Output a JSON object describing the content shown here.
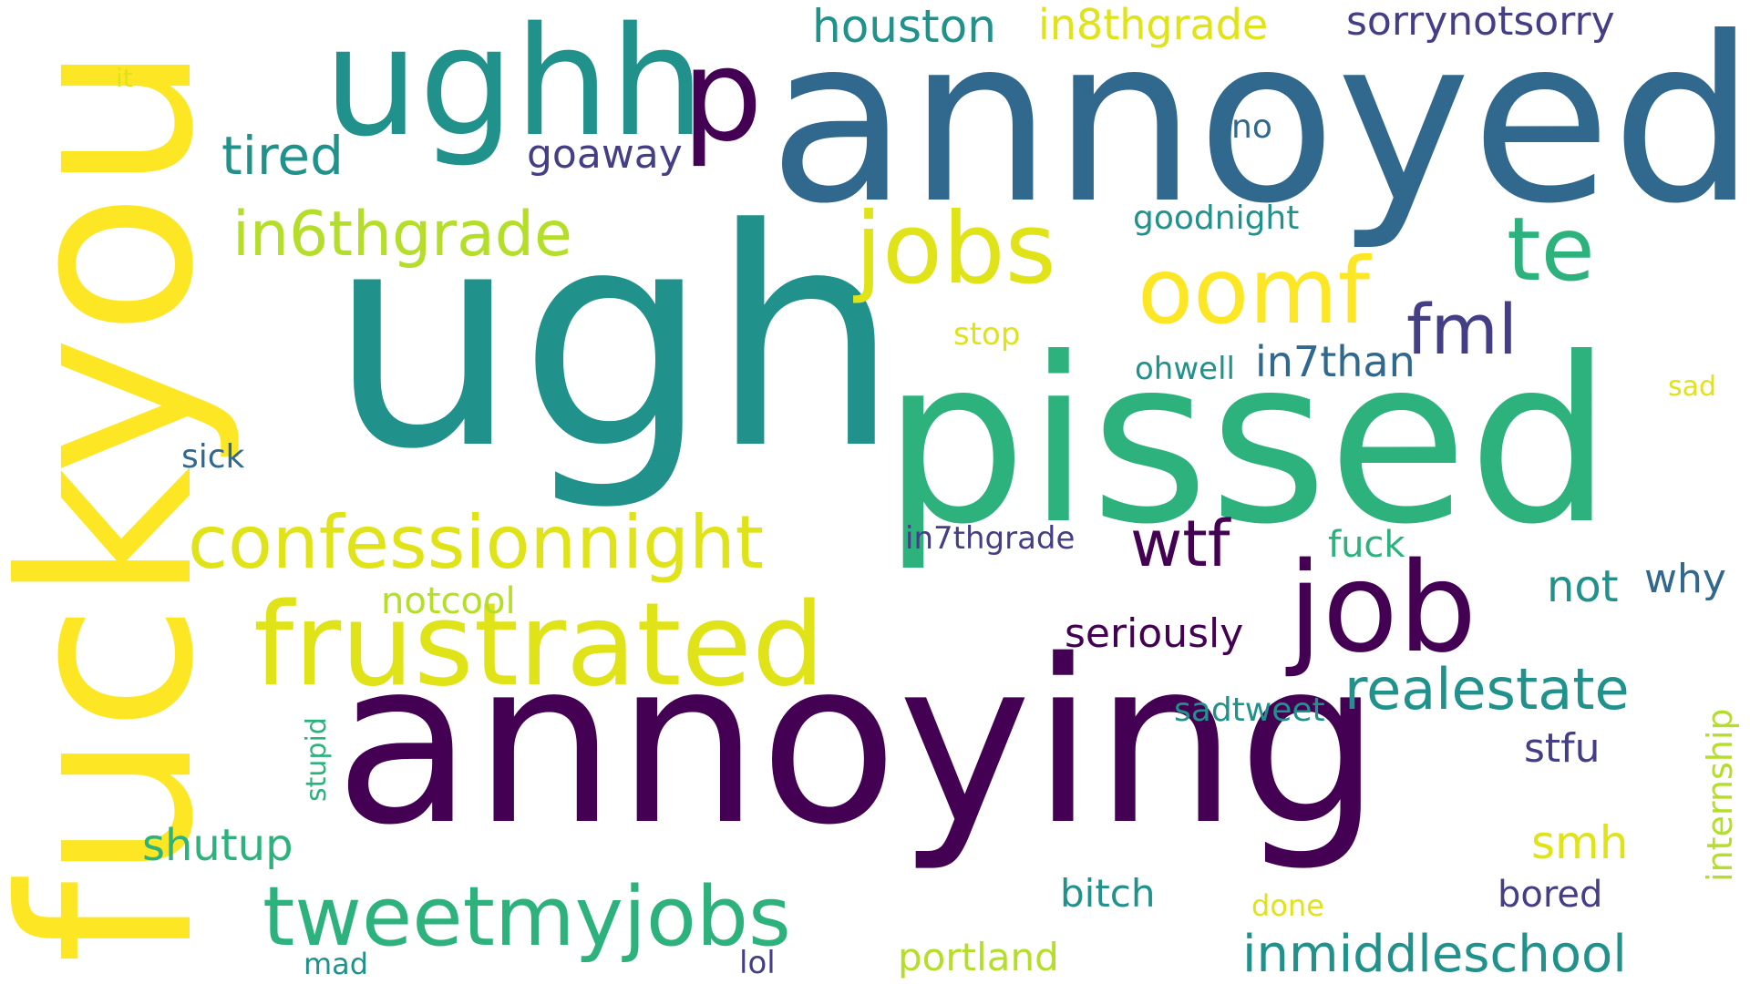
{
  "palette": {
    "purple": "#440154",
    "indigo": "#433e85",
    "blue": "#31688e",
    "teal": "#21918c",
    "green": "#2db27d",
    "lime": "#b5de2b",
    "yellow": "#dfe318",
    "bright_yellow": "#fde725"
  },
  "words": {
    "annoyed": "annoyed",
    "ugh": "ugh",
    "annoying": "annoying",
    "pissed": "pissed",
    "fuckyou": "fuckyou",
    "ughh": "ughh",
    "p": "p",
    "frustrated": "frustrated",
    "job": "job",
    "jobs": "jobs",
    "oomf": "oomf",
    "te": "te",
    "tweetmyjobs": "tweetmyjobs",
    "confessionnight": "confessionnight",
    "in6thgrade": "in6thgrade",
    "realestate": "realestate",
    "inmiddleschool": "inmiddleschool",
    "tired": "tired",
    "houston": "houston",
    "in8thgrade": "in8thgrade",
    "sorrynotsorry": "sorrynotsorry",
    "fml": "fml",
    "wtf": "wtf",
    "in7than": "in7than",
    "goaway": "goaway",
    "seriously": "seriously",
    "shutup": "shutup",
    "smh": "smh",
    "stfu": "stfu",
    "internship": "internship",
    "not": "not",
    "why": "why",
    "portland": "portland",
    "bitch": "bitch",
    "notcool": "notcool",
    "sadtweet": "sadtweet",
    "fuck": "fuck",
    "bored": "bored",
    "in7thgrade": "in7thgrade",
    "goodnight": "goodnight",
    "stupid": "stupid",
    "no": "no",
    "stop": "stop",
    "ohwell": "ohwell",
    "sick": "sick",
    "done": "done",
    "lol": "lol",
    "mad": "mad",
    "sad": "sad",
    "it": "it"
  }
}
